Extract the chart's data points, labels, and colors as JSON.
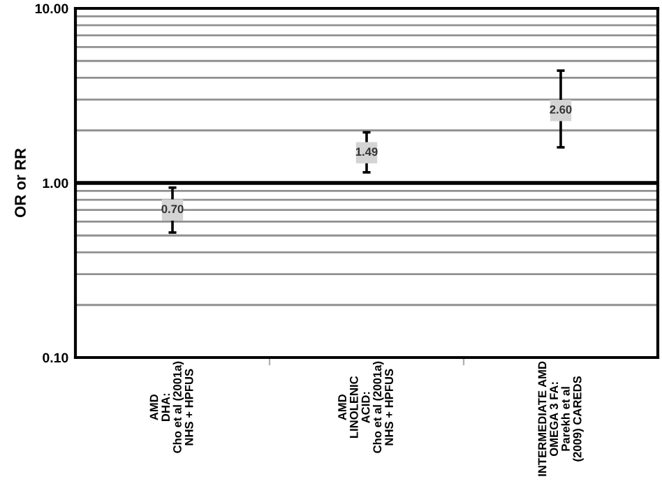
{
  "chart_data": {
    "type": "scatter",
    "ylabel": "OR or RR",
    "categories": [
      "AMD\nDHA:\nCho et al (2001a)\nNHS + HPFUS",
      "AMD\nLINOLENIC\nACID:\nCho et al (2001a)\nNHS + HPFUS",
      "INTERMEDIATE AMD\nOMEGA 3 FA:\nParekh et al\n(2009) CAREDS"
    ],
    "values": [
      0.7,
      1.49,
      2.6
    ],
    "errors": [
      [
        0.52,
        0.94
      ],
      [
        1.15,
        1.95
      ],
      [
        1.6,
        4.4
      ]
    ],
    "value_labels": [
      "0.70",
      "1.49",
      "2.60"
    ],
    "color": "#d4d4d4",
    "marker": "square",
    "log": true,
    "ylim": [
      0.1,
      10
    ],
    "yticks": [
      {
        "value": 0.1,
        "label": "0.10"
      },
      {
        "value": 0.2,
        "label": null
      },
      {
        "value": 0.3,
        "label": null
      },
      {
        "value": 0.4,
        "label": null
      },
      {
        "value": 0.5,
        "label": null
      },
      {
        "value": 0.6,
        "label": null
      },
      {
        "value": 0.7,
        "label": null
      },
      {
        "value": 0.8,
        "label": null
      },
      {
        "value": 0.9,
        "label": null
      },
      {
        "value": 1,
        "label": "1.00"
      },
      {
        "value": 2,
        "label": null
      },
      {
        "value": 3,
        "label": null
      },
      {
        "value": 4,
        "label": null
      },
      {
        "value": 5,
        "label": null
      },
      {
        "value": 6,
        "label": null
      },
      {
        "value": 7,
        "label": null
      },
      {
        "value": 8,
        "label": null
      },
      {
        "value": 9,
        "label": null
      },
      {
        "value": 10,
        "label": "10.00"
      }
    ],
    "grid": "y",
    "ref_lines": [
      {
        "axis": "y",
        "value": 1,
        "color": "#000000"
      }
    ]
  }
}
